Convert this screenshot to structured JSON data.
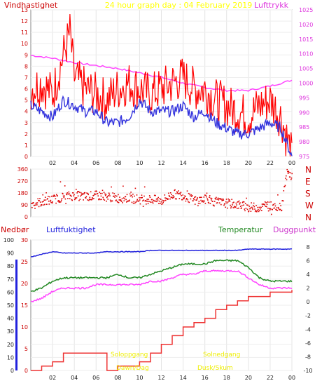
{
  "header": {
    "title": "24 hour graph day : 04 February 2019",
    "left_label": "Vindhastighet",
    "right_label": "Lufttrykk"
  },
  "bottom_header": {
    "rain_label": "Nedbør",
    "humidity_label": "Luftfuktighet",
    "temp_label": "Temperatur",
    "dew_label": "Duggpunkt"
  },
  "annotations": {
    "sunrise_1": "Soloppgang",
    "sunrise_2": "Dawn/Dag",
    "sunset_1": "Solnedgang",
    "sunset_2": "Dusk/Skum"
  },
  "colors": {
    "wind_gust": "#ff0000",
    "wind_avg": "#3333dd",
    "pressure": "#ff44ff",
    "direction": "#dd0000",
    "rain": "#ee3333",
    "humidity": "#2222dd",
    "temperature": "#228822",
    "dewpoint": "#ff44ff",
    "title": "#ffff00",
    "sun_text": "#eeee00"
  },
  "chart_data": [
    {
      "type": "line",
      "id": "wind_pressure",
      "title": "24 hour graph day : 04 February 2019",
      "x_tick_labels": [
        "02",
        "04",
        "06",
        "08",
        "10",
        "12",
        "14",
        "16",
        "18",
        "20",
        "22",
        "00"
      ],
      "x_range_hours": [
        0,
        24
      ],
      "ylabel": "Vindhastighet",
      "ylim": [
        0,
        13
      ],
      "y_ticks": [
        0,
        1,
        2,
        3,
        4,
        5,
        6,
        7,
        8,
        9,
        10,
        11,
        12,
        13
      ],
      "y2label": "Lufttrykk",
      "y2lim": [
        975,
        1025
      ],
      "y2_ticks": [
        975,
        980,
        985,
        990,
        995,
        1000,
        1005,
        1010,
        1015,
        1020,
        1025
      ],
      "grid": true,
      "series": [
        {
          "role": "gust",
          "x": [
            0,
            1,
            2,
            3,
            3.6,
            4,
            5,
            6,
            7,
            8,
            9,
            10,
            11,
            12,
            13,
            14,
            15,
            16,
            17,
            18,
            19,
            20,
            21,
            22,
            23,
            24
          ],
          "values": [
            6,
            6.5,
            5.5,
            9,
            11,
            7,
            6,
            5.5,
            5,
            6,
            6.5,
            6,
            5.5,
            6,
            6.5,
            7,
            6,
            6,
            5,
            4.5,
            4,
            3.5,
            4.5,
            5,
            3.5,
            0
          ]
        },
        {
          "role": "average",
          "x": [
            0,
            1,
            2,
            3,
            4,
            5,
            6,
            7,
            8,
            9,
            10,
            11,
            12,
            13,
            14,
            15,
            16,
            17,
            18,
            19,
            20,
            21,
            22,
            23,
            24
          ],
          "values": [
            4.5,
            4,
            3.5,
            5,
            4.5,
            4,
            4,
            3,
            3,
            3.5,
            5,
            4,
            4,
            4,
            4.5,
            3.5,
            4,
            3,
            2.5,
            2,
            2,
            2.5,
            3,
            2.5,
            0
          ]
        },
        {
          "role": "pressure",
          "x": [
            0,
            2,
            4,
            6,
            8,
            10,
            12,
            14,
            16,
            18,
            20,
            22,
            24
          ],
          "values": [
            1009.5,
            1008.5,
            1007,
            1006,
            1005,
            1003.5,
            1002,
            1000,
            998.5,
            997.5,
            997.5,
            999,
            1001
          ]
        }
      ]
    },
    {
      "type": "scatter",
      "id": "wind_direction",
      "x_range_hours": [
        0,
        24
      ],
      "y_ticks": [
        0,
        90,
        180,
        270,
        360
      ],
      "y_tick_labels": [
        "0",
        "90",
        "180",
        "270",
        "360"
      ],
      "right_labels": [
        "N",
        "W",
        "S",
        "E",
        "N"
      ],
      "ylim": [
        0,
        360
      ],
      "x": [
        0,
        1,
        2,
        3,
        4,
        5,
        6,
        7,
        8,
        9,
        10,
        11,
        12,
        13,
        14,
        15,
        16,
        17,
        18,
        19,
        20,
        21,
        22,
        23,
        23.5,
        24
      ],
      "values": [
        100,
        110,
        130,
        150,
        160,
        150,
        160,
        150,
        140,
        140,
        130,
        130,
        120,
        170,
        160,
        120,
        130,
        110,
        100,
        90,
        70,
        70,
        80,
        75,
        330,
        300
      ]
    },
    {
      "type": "line",
      "id": "rain_humidity_temp",
      "x_tick_labels": [
        "02",
        "04",
        "06",
        "08",
        "10",
        "12",
        "14",
        "16",
        "18",
        "20",
        "22",
        "00"
      ],
      "x_range_hours": [
        0,
        24
      ],
      "y_left_outer": {
        "label": "Nedbør",
        "ticks": [
          0,
          10,
          20,
          30,
          40,
          50,
          60,
          70,
          80,
          90,
          100
        ],
        "ylim": [
          0,
          100
        ]
      },
      "y_left_inner": {
        "label": "Luftfuktighet",
        "ticks": [
          0,
          5,
          10,
          15,
          20,
          25,
          30
        ],
        "ylim": [
          0,
          30
        ]
      },
      "y_right": {
        "label": "Temperatur",
        "ticks": [
          -10,
          -8,
          -6,
          -4,
          -2,
          0,
          2,
          4,
          6,
          8
        ],
        "ylim": [
          -10,
          9
        ]
      },
      "grid": true,
      "series": [
        {
          "name": "Nedbør",
          "x": [
            0,
            1,
            2,
            3,
            4,
            5,
            6,
            7,
            8,
            9,
            10,
            11,
            12,
            13,
            14,
            15,
            16,
            17,
            18,
            19,
            20,
            21,
            22,
            23,
            24
          ],
          "values": [
            0,
            1,
            2,
            4,
            4,
            4,
            4,
            0,
            1,
            1,
            2,
            4,
            6,
            8,
            10,
            11,
            12,
            14,
            15,
            16,
            17,
            17,
            18,
            18,
            18.5
          ]
        },
        {
          "name": "Luftfuktighet",
          "x": [
            0,
            1,
            2,
            3,
            4,
            5,
            6,
            7,
            8,
            9,
            10,
            11,
            12,
            13,
            14,
            15,
            16,
            17,
            18,
            19,
            20,
            21,
            22,
            23,
            24
          ],
          "values": [
            87,
            89,
            91,
            90,
            90,
            90,
            90,
            91,
            91,
            91,
            91,
            92,
            92,
            92,
            92,
            92,
            92,
            92,
            92,
            92,
            93,
            93,
            93,
            93,
            93
          ]
        },
        {
          "name": "Temperatur",
          "x": [
            0,
            1,
            2,
            3,
            4,
            5,
            6,
            7,
            8,
            9,
            10,
            11,
            12,
            13,
            14,
            15,
            16,
            17,
            18,
            19,
            20,
            21,
            22,
            23,
            24
          ],
          "values": [
            1.5,
            2,
            3,
            3.5,
            3.5,
            3.5,
            3.5,
            3.5,
            4,
            3.5,
            3.5,
            4,
            4.5,
            5,
            5.5,
            5.5,
            5.5,
            6,
            6,
            6,
            5,
            3.5,
            3,
            3,
            3
          ]
        },
        {
          "name": "Duggpunkt",
          "x": [
            0,
            1,
            2,
            3,
            4,
            5,
            6,
            7,
            8,
            9,
            10,
            11,
            12,
            13,
            14,
            15,
            16,
            17,
            18,
            19,
            20,
            21,
            22,
            23,
            24
          ],
          "values": [
            0,
            0.5,
            1.5,
            2,
            2,
            2,
            2.5,
            2.5,
            2.5,
            2.5,
            2.5,
            3,
            3,
            3.5,
            4,
            4,
            4.5,
            4.5,
            4.5,
            4.5,
            3.5,
            2.5,
            2,
            2,
            2
          ]
        }
      ]
    }
  ]
}
